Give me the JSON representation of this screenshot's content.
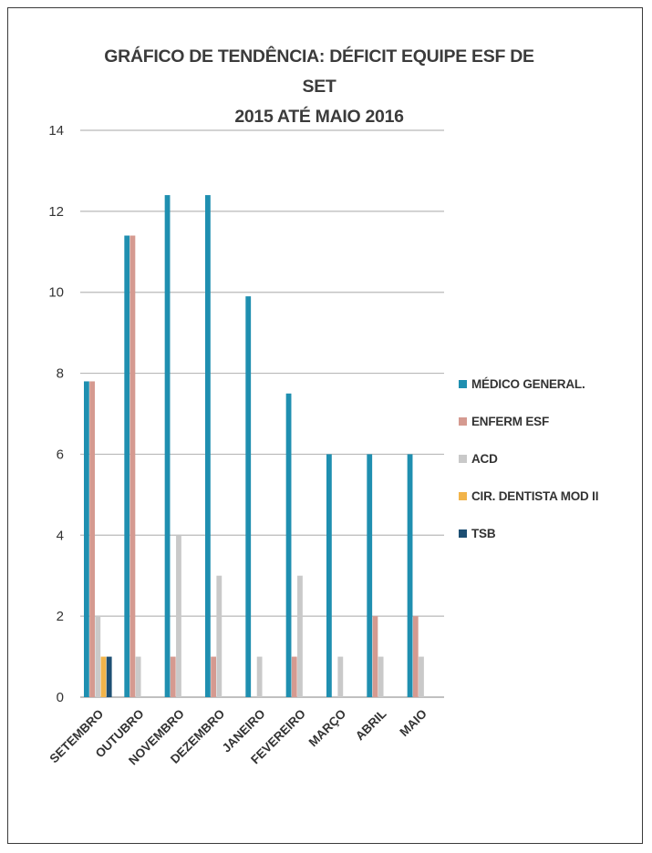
{
  "chart_data": {
    "type": "bar",
    "title": "GRÁFICO DE TENDÊNCIA: DÉFICIT EQUIPE ESF DE SET 2015 ATÉ MAIO 2016",
    "title_lines": [
      "GRÁFICO DE TENDÊNCIA: DÉFICIT EQUIPE ESF DE SET",
      "2015 ATÉ MAIO 2016"
    ],
    "xlabel": "",
    "ylabel": "",
    "ylim": [
      0,
      14
    ],
    "yticks": [
      0,
      2,
      4,
      6,
      8,
      10,
      12,
      14
    ],
    "grid": true,
    "legend_position": "right",
    "categories": [
      "SETEMBRO",
      "OUTUBRO",
      "NOVEMBRO",
      "DEZEMBRO",
      "JANEIRO",
      "FEVEREIRO",
      "MARÇO",
      "ABRIL",
      "MAIO"
    ],
    "series": [
      {
        "name": "MÉDICO GENERAL.",
        "color": "#1f8fb0",
        "values": [
          7.8,
          11.4,
          12.4,
          12.4,
          9.9,
          7.5,
          6,
          6,
          6
        ]
      },
      {
        "name": "ENFERM ESF",
        "color": "#d59a90",
        "values": [
          7.8,
          11.4,
          1,
          1,
          0,
          1,
          0,
          2,
          2
        ]
      },
      {
        "name": "ACD",
        "color": "#c9c9c9",
        "values": [
          2,
          1,
          4,
          3,
          1,
          3,
          1,
          1,
          1
        ]
      },
      {
        "name": "CIR. DENTISTA MOD II",
        "color": "#f2b44a",
        "values": [
          1,
          0,
          0,
          0,
          0,
          0,
          0,
          0,
          0
        ]
      },
      {
        "name": "TSB",
        "color": "#1d4f73",
        "values": [
          1,
          0,
          0,
          0,
          0,
          0,
          0,
          0,
          0
        ]
      }
    ]
  }
}
